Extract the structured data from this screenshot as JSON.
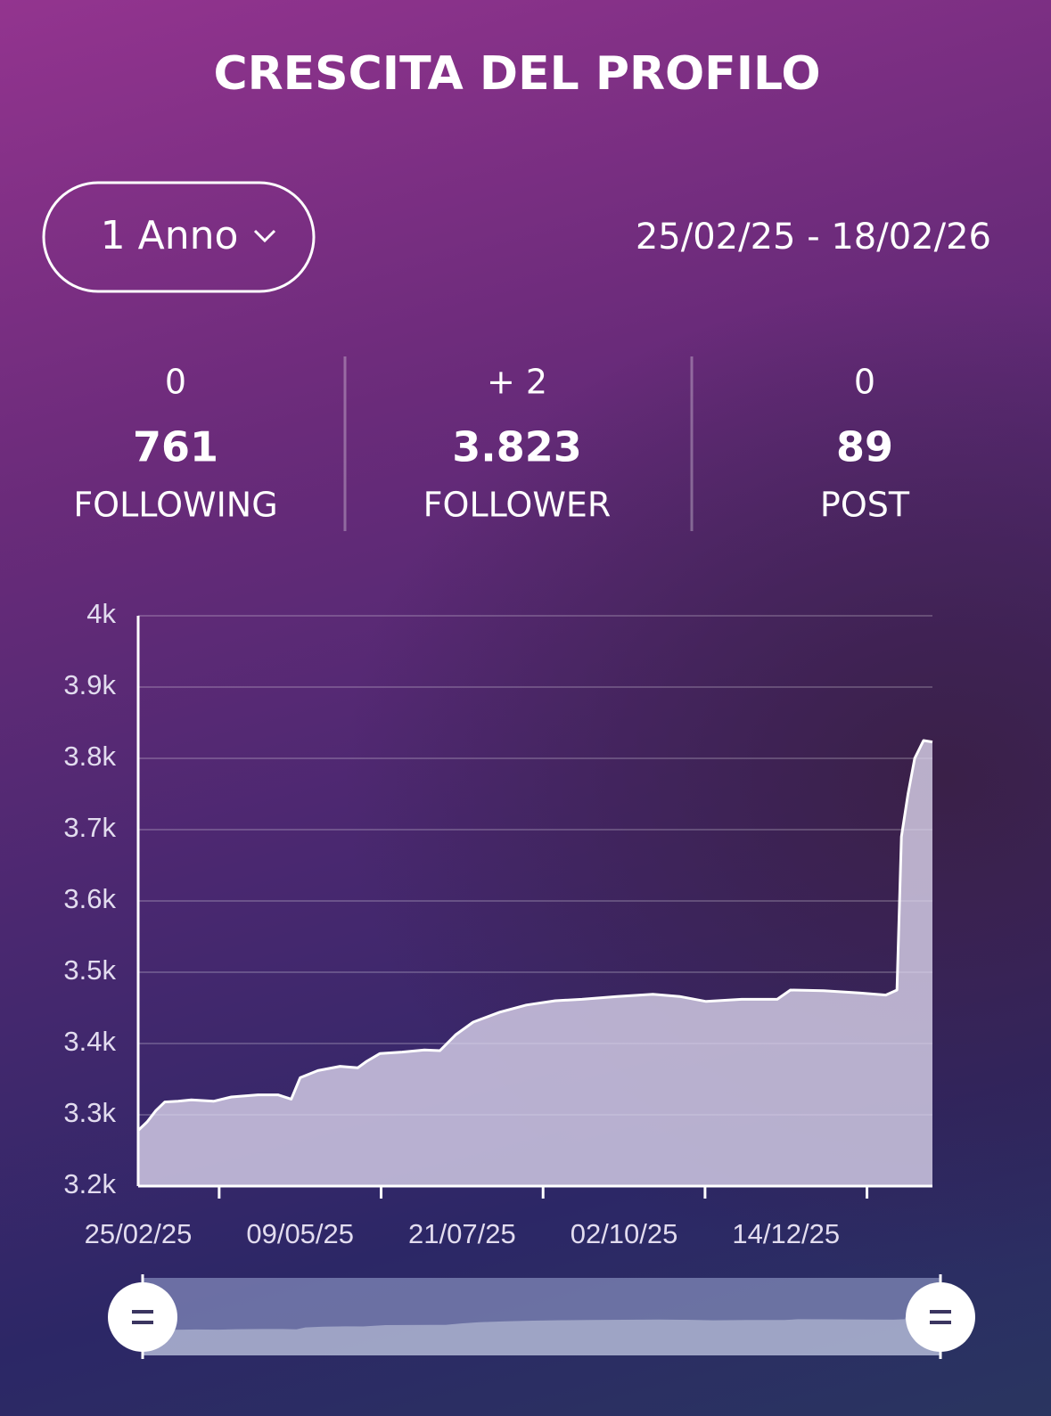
{
  "title": "CRESCITA DEL PROFILO",
  "period_selector": "1 Anno",
  "date_range": "25/02/25 - 18/02/26",
  "stats": [
    {
      "delta": "0",
      "value": "761",
      "label": "FOLLOWING"
    },
    {
      "delta": "+ 2",
      "value": "3.823",
      "label": "FOLLOWER"
    },
    {
      "delta": "0",
      "value": "89",
      "label": "POST"
    }
  ],
  "chart_data": {
    "type": "area",
    "x": [
      "25/02/25",
      "01/03/25",
      "05/03/25",
      "09/03/25",
      "15/03/25",
      "21/03/25",
      "31/03/25",
      "08/04/25",
      "20/04/25",
      "29/04/25",
      "05/05/25",
      "09/05/25",
      "17/05/25",
      "27/05/25",
      "04/06/25",
      "08/06/25",
      "14/06/25",
      "24/06/25",
      "04/07/25",
      "11/07/25",
      "18/07/25",
      "26/07/25",
      "07/08/25",
      "19/08/25",
      "01/09/25",
      "13/09/25",
      "29/09/25",
      "15/10/25",
      "27/10/25",
      "08/11/25",
      "24/11/25",
      "10/12/25",
      "16/12/25",
      "31/12/25",
      "16/01/26",
      "28/01/26",
      "02/02/26",
      "04/02/26",
      "07/02/26",
      "10/02/26",
      "14/02/26",
      "18/02/26"
    ],
    "values": [
      3278,
      3290,
      3306,
      3318,
      3319,
      3321,
      3319,
      3325,
      3328,
      3328,
      3322,
      3352,
      3362,
      3368,
      3366,
      3375,
      3386,
      3388,
      3391,
      3390,
      3412,
      3430,
      3444,
      3454,
      3460,
      3462,
      3466,
      3469,
      3466,
      3459,
      3462,
      3462,
      3475,
      3474,
      3471,
      3468,
      3475,
      3690,
      3750,
      3800,
      3825,
      3823
    ],
    "color": "#ffffff",
    "ylim": [
      3200,
      4000
    ],
    "yticks": [
      {
        "value": 3200,
        "label": "3.2k"
      },
      {
        "value": 3300,
        "label": "3.3k"
      },
      {
        "value": 3400,
        "label": "3.4k"
      },
      {
        "value": 3500,
        "label": "3.5k"
      },
      {
        "value": 3600,
        "label": "3.6k"
      },
      {
        "value": 3700,
        "label": "3.7k"
      },
      {
        "value": 3800,
        "label": "3.8k"
      },
      {
        "value": 3900,
        "label": "3.9k"
      },
      {
        "value": 4000,
        "label": "4k"
      }
    ],
    "xlim": [
      "25/02/25",
      "18/02/26"
    ],
    "xticks": [
      "25/02/25",
      "09/05/25",
      "21/07/25",
      "02/10/25",
      "14/12/25"
    ],
    "grid": true
  }
}
